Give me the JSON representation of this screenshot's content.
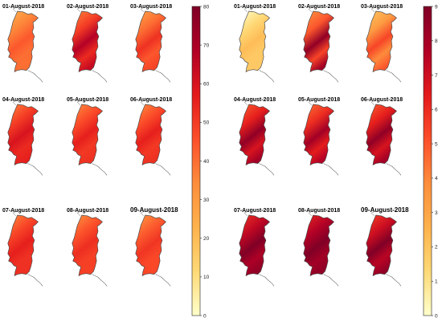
{
  "figure": {
    "panel_sets": [
      {
        "id": "left",
        "colorbar": {
          "min": 0,
          "max": 80,
          "ticks": [
            "0",
            "10",
            "20",
            "30",
            "40",
            "50",
            "60",
            "70",
            "80"
          ]
        },
        "panels": [
          {
            "title": "01-August-2018",
            "mean": 0.45,
            "hot": 0.55
          },
          {
            "title": "02-August-2018",
            "mean": 0.62,
            "hot": 0.85
          },
          {
            "title": "03-August-2018",
            "mean": 0.5,
            "hot": 0.65
          },
          {
            "title": "04-August-2018",
            "mean": 0.62,
            "hot": 0.75
          },
          {
            "title": "05-August-2018",
            "mean": 0.58,
            "hot": 0.7
          },
          {
            "title": "06-August-2018",
            "mean": 0.58,
            "hot": 0.7
          },
          {
            "title": "07-August-2018",
            "mean": 0.6,
            "hot": 0.7
          },
          {
            "title": "08-August-2018",
            "mean": 0.56,
            "hot": 0.66
          },
          {
            "title": "09-August-2018",
            "mean": 0.54,
            "hot": 0.64
          }
        ]
      },
      {
        "id": "right",
        "colorbar": {
          "min": 0,
          "max": 9,
          "ticks": [
            "0",
            "1",
            "2",
            "3",
            "4",
            "5",
            "6",
            "7",
            "8",
            "9"
          ]
        },
        "panels": [
          {
            "title": "01-August-2018",
            "mean": 0.15,
            "hot": 0.25
          },
          {
            "title": "02-August-2018",
            "mean": 0.55,
            "hot": 0.95
          },
          {
            "title": "03-August-2018",
            "mean": 0.38,
            "hot": 0.6
          },
          {
            "title": "04-August-2018",
            "mean": 0.7,
            "hot": 0.95
          },
          {
            "title": "05-August-2018",
            "mean": 0.66,
            "hot": 0.9
          },
          {
            "title": "06-August-2018",
            "mean": 0.7,
            "hot": 0.95
          },
          {
            "title": "07-August-2018",
            "mean": 0.82,
            "hot": 1.0
          },
          {
            "title": "08-August-2018",
            "mean": 0.85,
            "hot": 1.0
          },
          {
            "title": "09-August-2018",
            "mean": 0.78,
            "hot": 1.0
          }
        ]
      }
    ],
    "colors": {
      "scale": [
        "#ffffcc",
        "#fed976",
        "#feb24c",
        "#fd8d3c",
        "#fc4e2a",
        "#e31a1c",
        "#b10026",
        "#800026"
      ],
      "outline": "#444444",
      "rivers": "#555555"
    }
  }
}
